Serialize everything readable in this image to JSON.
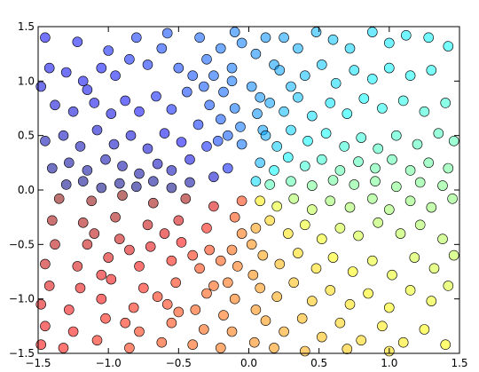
{
  "chart_data": {
    "type": "scatter",
    "title": "",
    "xlabel": "",
    "ylabel": "",
    "xlim": [
      -1.5,
      1.5
    ],
    "ylim": [
      -1.5,
      1.5
    ],
    "grid": false,
    "legend": "none",
    "x_ticks": [
      -1.5,
      -1.0,
      -0.5,
      0.0,
      0.5,
      1.0,
      1.5
    ],
    "y_ticks": [
      -1.5,
      -1.0,
      -0.5,
      0.0,
      0.5,
      1.0,
      1.5
    ],
    "x_tick_labels": [
      "−1.5",
      "−1.0",
      "−0.5",
      "0.0",
      "0.5",
      "1.0",
      "1.5"
    ],
    "y_tick_labels": [
      "−1.5",
      "−1.0",
      "−0.5",
      "0.0",
      "0.5",
      "1.0",
      "1.5"
    ],
    "point_alpha": 0.55,
    "colormap": "jet (colour follows angle of each point around the origin)",
    "points": [
      [
        -1.42,
        1.12
      ],
      [
        -1.3,
        1.08
      ],
      [
        -1.18,
        1.0
      ],
      [
        -1.05,
        1.12
      ],
      [
        -0.95,
        1.05
      ],
      [
        -0.85,
        1.2
      ],
      [
        -0.72,
        1.15
      ],
      [
        -0.62,
        1.3
      ],
      [
        -0.5,
        1.12
      ],
      [
        -0.4,
        1.05
      ],
      [
        -1.38,
        0.78
      ],
      [
        -1.25,
        0.72
      ],
      [
        -1.1,
        0.8
      ],
      [
        -0.98,
        0.7
      ],
      [
        -0.88,
        0.82
      ],
      [
        -0.78,
        0.72
      ],
      [
        -0.66,
        0.86
      ],
      [
        -0.55,
        0.74
      ],
      [
        -0.44,
        0.9
      ],
      [
        -0.32,
        0.95
      ],
      [
        -1.45,
        0.45
      ],
      [
        -1.32,
        0.5
      ],
      [
        -1.2,
        0.4
      ],
      [
        -1.08,
        0.55
      ],
      [
        -0.96,
        0.42
      ],
      [
        -0.84,
        0.5
      ],
      [
        -0.72,
        0.38
      ],
      [
        -0.6,
        0.52
      ],
      [
        -0.48,
        0.44
      ],
      [
        -0.36,
        0.6
      ],
      [
        -1.4,
        0.2
      ],
      [
        -1.28,
        0.25
      ],
      [
        -1.15,
        0.18
      ],
      [
        -1.02,
        0.28
      ],
      [
        -0.9,
        0.22
      ],
      [
        -0.78,
        0.15
      ],
      [
        -0.65,
        0.24
      ],
      [
        -0.55,
        0.18
      ],
      [
        -0.42,
        0.28
      ],
      [
        -0.3,
        0.4
      ],
      [
        -1.3,
        0.05
      ],
      [
        -1.18,
        0.08
      ],
      [
        -1.05,
        0.02
      ],
      [
        -0.92,
        0.06
      ],
      [
        -0.8,
        0.03
      ],
      [
        -0.68,
        0.08
      ],
      [
        -0.55,
        0.02
      ],
      [
        -0.42,
        0.07
      ],
      [
        -0.25,
        0.12
      ],
      [
        -0.15,
        0.2
      ],
      [
        -1.45,
        1.4
      ],
      [
        -1.22,
        1.36
      ],
      [
        -1.0,
        1.28
      ],
      [
        -0.8,
        1.4
      ],
      [
        -0.58,
        1.44
      ],
      [
        -0.35,
        1.4
      ],
      [
        -0.2,
        1.3
      ],
      [
        -0.1,
        1.45
      ],
      [
        -1.48,
        0.95
      ],
      [
        -1.15,
        0.92
      ],
      [
        -0.3,
        1.2
      ],
      [
        -0.25,
        1.05
      ],
      [
        -0.18,
        0.9
      ],
      [
        -0.12,
        1.12
      ],
      [
        -0.05,
        1.35
      ],
      [
        0.05,
        1.25
      ],
      [
        0.12,
        1.4
      ],
      [
        0.18,
        1.15
      ],
      [
        -0.28,
        0.78
      ],
      [
        -0.2,
        0.65
      ],
      [
        -0.15,
        0.5
      ],
      [
        -0.1,
        0.75
      ],
      [
        -0.06,
        0.58
      ],
      [
        0.02,
        0.95
      ],
      [
        0.06,
        0.7
      ],
      [
        0.1,
        0.55
      ],
      [
        -0.22,
        0.45
      ],
      [
        -0.05,
        0.42
      ],
      [
        0.08,
        0.85
      ],
      [
        -0.12,
        1.0
      ],
      [
        0.25,
        1.4
      ],
      [
        0.35,
        1.3
      ],
      [
        0.48,
        1.45
      ],
      [
        0.6,
        1.38
      ],
      [
        0.72,
        1.3
      ],
      [
        0.88,
        1.45
      ],
      [
        1.0,
        1.35
      ],
      [
        1.12,
        1.42
      ],
      [
        1.28,
        1.4
      ],
      [
        1.42,
        1.32
      ],
      [
        0.22,
        1.1
      ],
      [
        0.3,
        0.95
      ],
      [
        0.4,
        1.05
      ],
      [
        0.52,
        1.15
      ],
      [
        0.62,
        0.98
      ],
      [
        0.75,
        1.1
      ],
      [
        0.88,
        1.02
      ],
      [
        1.0,
        1.12
      ],
      [
        1.15,
        1.05
      ],
      [
        1.3,
        1.1
      ],
      [
        0.15,
        0.8
      ],
      [
        0.25,
        0.72
      ],
      [
        0.35,
        0.85
      ],
      [
        0.45,
        0.68
      ],
      [
        0.58,
        0.8
      ],
      [
        0.7,
        0.7
      ],
      [
        0.82,
        0.84
      ],
      [
        0.95,
        0.75
      ],
      [
        1.1,
        0.82
      ],
      [
        1.25,
        0.72
      ],
      [
        1.4,
        0.8
      ],
      [
        0.12,
        0.5
      ],
      [
        0.2,
        0.4
      ],
      [
        0.3,
        0.55
      ],
      [
        0.42,
        0.45
      ],
      [
        0.55,
        0.52
      ],
      [
        0.68,
        0.4
      ],
      [
        0.8,
        0.48
      ],
      [
        0.92,
        0.38
      ],
      [
        1.05,
        0.5
      ],
      [
        1.2,
        0.42
      ],
      [
        1.35,
        0.52
      ],
      [
        1.46,
        0.45
      ],
      [
        0.08,
        0.25
      ],
      [
        0.18,
        0.18
      ],
      [
        0.28,
        0.3
      ],
      [
        0.4,
        0.22
      ],
      [
        0.52,
        0.28
      ],
      [
        0.65,
        0.18
      ],
      [
        0.78,
        0.26
      ],
      [
        0.9,
        0.2
      ],
      [
        1.02,
        0.28
      ],
      [
        1.15,
        0.18
      ],
      [
        1.28,
        0.25
      ],
      [
        1.42,
        0.2
      ],
      [
        0.05,
        0.08
      ],
      [
        0.15,
        0.05
      ],
      [
        0.3,
        0.08
      ],
      [
        0.45,
        0.04
      ],
      [
        0.6,
        0.09
      ],
      [
        0.75,
        0.05
      ],
      [
        0.9,
        0.08
      ],
      [
        1.05,
        0.03
      ],
      [
        1.22,
        0.07
      ],
      [
        1.38,
        0.04
      ],
      [
        0.08,
        -0.1
      ],
      [
        0.2,
        -0.15
      ],
      [
        0.32,
        -0.08
      ],
      [
        0.45,
        -0.18
      ],
      [
        0.58,
        -0.1
      ],
      [
        0.72,
        -0.16
      ],
      [
        0.88,
        -0.08
      ],
      [
        1.0,
        -0.18
      ],
      [
        1.15,
        -0.1
      ],
      [
        1.3,
        -0.16
      ],
      [
        1.45,
        -0.08
      ],
      [
        0.05,
        -0.35
      ],
      [
        0.15,
        -0.28
      ],
      [
        0.28,
        -0.4
      ],
      [
        0.4,
        -0.32
      ],
      [
        0.52,
        -0.45
      ],
      [
        0.65,
        -0.35
      ],
      [
        0.78,
        -0.42
      ],
      [
        0.92,
        -0.3
      ],
      [
        1.08,
        -0.4
      ],
      [
        1.22,
        -0.32
      ],
      [
        1.38,
        -0.45
      ],
      [
        0.1,
        -0.6
      ],
      [
        0.22,
        -0.68
      ],
      [
        0.35,
        -0.58
      ],
      [
        0.48,
        -0.72
      ],
      [
        0.6,
        -0.62
      ],
      [
        0.74,
        -0.75
      ],
      [
        0.88,
        -0.65
      ],
      [
        1.02,
        -0.78
      ],
      [
        1.18,
        -0.62
      ],
      [
        1.32,
        -0.72
      ],
      [
        1.46,
        -0.6
      ],
      [
        0.08,
        -0.9
      ],
      [
        0.2,
        -0.98
      ],
      [
        0.32,
        -0.85
      ],
      [
        0.45,
        -1.02
      ],
      [
        0.58,
        -0.92
      ],
      [
        0.72,
        -1.05
      ],
      [
        0.85,
        -0.95
      ],
      [
        1.0,
        -1.08
      ],
      [
        1.15,
        -0.92
      ],
      [
        1.3,
        -1.02
      ],
      [
        1.42,
        -0.88
      ],
      [
        0.12,
        -1.2
      ],
      [
        0.25,
        -1.3
      ],
      [
        0.38,
        -1.18
      ],
      [
        0.52,
        -1.35
      ],
      [
        0.65,
        -1.22
      ],
      [
        0.8,
        -1.38
      ],
      [
        0.95,
        -1.25
      ],
      [
        1.1,
        -1.4
      ],
      [
        1.25,
        -1.28
      ],
      [
        1.4,
        -1.42
      ],
      [
        0.02,
        -0.5
      ],
      [
        0.03,
        -0.78
      ],
      [
        0.05,
        -1.1
      ],
      [
        0.04,
        -1.4
      ],
      [
        0.18,
        -1.45
      ],
      [
        0.4,
        -1.48
      ],
      [
        0.7,
        -1.46
      ],
      [
        1.0,
        -1.48
      ],
      [
        -0.05,
        -0.1
      ],
      [
        -0.1,
        -0.25
      ],
      [
        -0.05,
        -0.4
      ],
      [
        -0.12,
        -0.55
      ],
      [
        -0.08,
        -0.7
      ],
      [
        -0.15,
        -0.85
      ],
      [
        -0.1,
        -1.0
      ],
      [
        -0.18,
        -1.15
      ],
      [
        -0.12,
        -1.3
      ],
      [
        -0.2,
        -1.45
      ],
      [
        -0.25,
        -0.15
      ],
      [
        -0.3,
        -0.35
      ],
      [
        -0.28,
        -0.55
      ],
      [
        -0.35,
        -0.72
      ],
      [
        -0.3,
        -0.95
      ],
      [
        -0.38,
        -1.1
      ],
      [
        -0.32,
        -1.28
      ],
      [
        -0.4,
        -1.42
      ],
      [
        -0.45,
        -0.08
      ],
      [
        -0.5,
        -0.28
      ],
      [
        -0.48,
        -0.48
      ],
      [
        -0.55,
        -0.65
      ],
      [
        -0.52,
        -0.85
      ],
      [
        -0.58,
        -1.05
      ],
      [
        -0.55,
        -1.22
      ],
      [
        -0.62,
        -1.4
      ],
      [
        -0.68,
        -0.12
      ],
      [
        -0.72,
        -0.32
      ],
      [
        -0.7,
        -0.52
      ],
      [
        -0.78,
        -0.7
      ],
      [
        -0.75,
        -0.9
      ],
      [
        -0.82,
        -1.08
      ],
      [
        -0.78,
        -1.3
      ],
      [
        -0.85,
        -1.45
      ],
      [
        -0.9,
        -0.05
      ],
      [
        -0.95,
        -0.25
      ],
      [
        -0.92,
        -0.45
      ],
      [
        -1.0,
        -0.62
      ],
      [
        -0.98,
        -0.82
      ],
      [
        -1.05,
        -1.0
      ],
      [
        -1.02,
        -1.18
      ],
      [
        -1.08,
        -1.38
      ],
      [
        -1.12,
        -0.1
      ],
      [
        -1.18,
        -0.3
      ],
      [
        -1.15,
        -0.5
      ],
      [
        -1.22,
        -0.7
      ],
      [
        -1.2,
        -0.9
      ],
      [
        -1.28,
        -1.1
      ],
      [
        -1.25,
        -1.3
      ],
      [
        -1.32,
        -1.45
      ],
      [
        -1.35,
        -0.08
      ],
      [
        -1.4,
        -0.28
      ],
      [
        -1.38,
        -0.5
      ],
      [
        -1.45,
        -0.68
      ],
      [
        -1.42,
        -0.88
      ],
      [
        -1.48,
        -1.05
      ],
      [
        -1.45,
        -1.25
      ],
      [
        -1.48,
        -1.42
      ],
      [
        -0.6,
        -0.4
      ],
      [
        -0.4,
        -0.6
      ],
      [
        -0.85,
        -0.55
      ],
      [
        -0.25,
        -0.88
      ],
      [
        -0.65,
        -0.98
      ],
      [
        -1.05,
        -0.78
      ],
      [
        -0.5,
        -1.12
      ],
      [
        -0.88,
        -1.22
      ],
      [
        -1.1,
        -0.4
      ],
      [
        -0.2,
        -0.65
      ]
    ]
  }
}
